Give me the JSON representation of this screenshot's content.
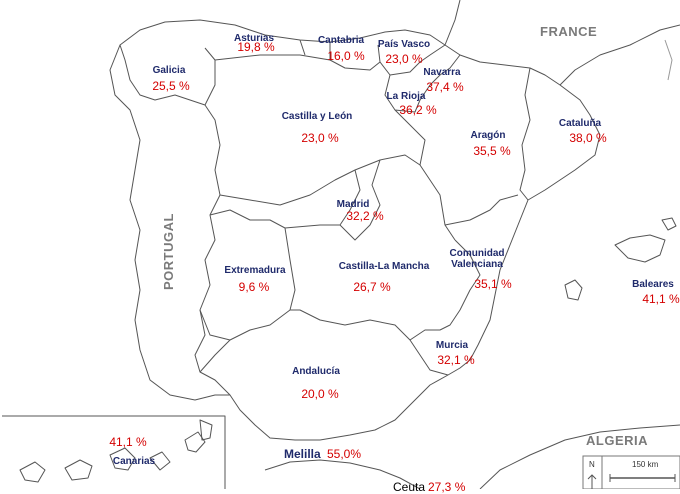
{
  "regions": {
    "galicia": {
      "name": "Galicia",
      "value": "25,5 %"
    },
    "asturias": {
      "name": "Asturias",
      "value": "19,8 %"
    },
    "cantabria": {
      "name": "Cantabria",
      "value": "16,0 %"
    },
    "pais_vasco": {
      "name": "País Vasco",
      "value": "23,0 %"
    },
    "navarra": {
      "name": "Navarra",
      "value": "37,4 %"
    },
    "la_rioja": {
      "name": "La Rioja",
      "value": "36,2 %"
    },
    "castilla_leon": {
      "name": "Castilla y León",
      "value": "23,0 %"
    },
    "aragon": {
      "name": "Aragón",
      "value": "35,5 %"
    },
    "cataluna": {
      "name": "Cataluña",
      "value": "38,0 %"
    },
    "madrid": {
      "name": "Madrid",
      "value": "32,2 %"
    },
    "extremadura": {
      "name": "Extremadura",
      "value": "9,6 %"
    },
    "castilla_la_mancha": {
      "name": "Castilla-La Mancha",
      "value": "26,7 %"
    },
    "valenciana": {
      "name_line1": "Comunidad",
      "name_line2": "Valenciana",
      "value": "35,1 %"
    },
    "baleares": {
      "name": "Baleares",
      "value": "41,1 %"
    },
    "murcia": {
      "name": "Murcia",
      "value": "32,1 %"
    },
    "andalucia": {
      "name": "Andalucía",
      "value": "20,0 %"
    },
    "canarias": {
      "name": "Canarias",
      "value": "41,1 %"
    },
    "melilla": {
      "name": "Melilla",
      "value": "55,0%"
    },
    "ceuta": {
      "name": "Ceuta",
      "value": "27,3 %"
    }
  },
  "countries": {
    "france": "FRANCE",
    "portugal": "PORTUGAL",
    "algeria": "ALGERIA"
  },
  "scale": {
    "north": "N",
    "distance": "150 km"
  },
  "colors": {
    "region_name": "#1f2a6b",
    "value": "#d40000",
    "border": "#555555",
    "country": "#7a7a7a"
  }
}
